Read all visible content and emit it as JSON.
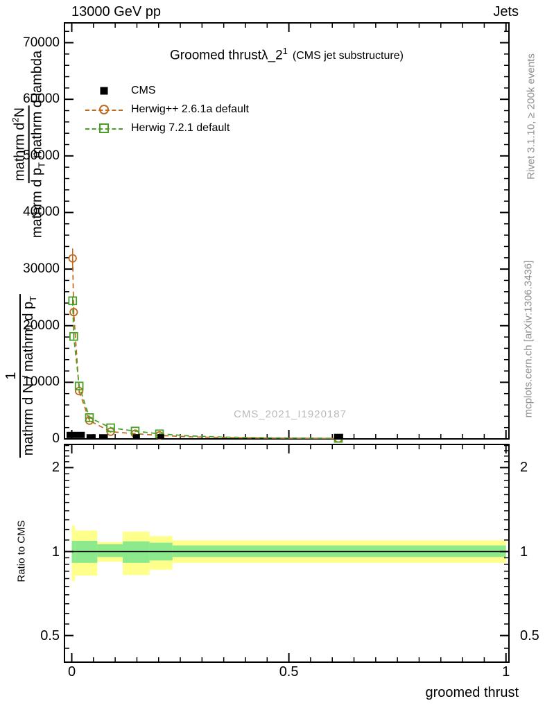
{
  "header": {
    "beam": "13000 GeV pp",
    "analysis_tag": "Jets"
  },
  "title": {
    "main": "Groomed thrust",
    "lambda": "λ_2",
    "sup": "1",
    "paren": "(CMS jet substructure)"
  },
  "legend": {
    "cms_label": "CMS",
    "herwigpp_label": "Herwig++ 2.6.1a default",
    "herwig7_label": "Herwig 7.2.1 default"
  },
  "watermark": "CMS_2021_I1920187",
  "side_notes": {
    "top": "Rivet 3.1.10, ≥ 200k events",
    "bottom": "mcplots.cern.ch [arXiv:1306.3436]"
  },
  "ylabel": {
    "outer_num": "1",
    "outer_den": "mathrm d N / mathrm d p",
    "outer_den_sub": "T",
    "inner_num": "mathrm d",
    "inner_num_sup": "2",
    "inner_num_tail": "N",
    "inner_den": "mathrm d p",
    "inner_den_sub": "T",
    "inner_den_tail": " mathrm d lambda"
  },
  "ratio_label": "Ratio to CMS",
  "xlabel": "groomed thrust",
  "chart_data": {
    "type": "line",
    "title": "Groomed thrust λ_2^1 (CMS jet substructure)",
    "xlabel": "groomed thrust",
    "ylabel": "1/(dN/dp_T) · d²N/(dp_T dλ)",
    "xlim": [
      -0.0168,
      1.0072
    ],
    "ylim": [
      0,
      73500
    ],
    "ratio_ylim": [
      0.4,
      2.43
    ],
    "grid": false,
    "legend_position": "top-left",
    "x_ticks": {
      "major": [
        {
          "v": 0,
          "label": "0"
        },
        {
          "v": 0.5,
          "label": "0.5"
        },
        {
          "v": 1,
          "label": "1"
        }
      ],
      "minor_step": 0.05
    },
    "y_ticks": {
      "major": [
        {
          "v": 0,
          "label": "0"
        },
        {
          "v": 10000,
          "label": "10000"
        },
        {
          "v": 20000,
          "label": "20000"
        },
        {
          "v": 30000,
          "label": "30000"
        },
        {
          "v": 40000,
          "label": "40000"
        },
        {
          "v": 50000,
          "label": "50000"
        },
        {
          "v": 60000,
          "label": "60000"
        },
        {
          "v": 70000,
          "label": "70000"
        }
      ],
      "minor_step": 2000
    },
    "ratio_ticks": {
      "major": [
        {
          "v": 0.5,
          "label": "0.5"
        },
        {
          "v": 1,
          "label": "1"
        },
        {
          "v": 2,
          "label": "2"
        }
      ],
      "minor": [
        0.45,
        0.55,
        0.6,
        0.65,
        0.7,
        0.75,
        0.8,
        0.85,
        0.9,
        0.95,
        1.1,
        1.2,
        1.3,
        1.4,
        1.5,
        1.6,
        1.7,
        1.8,
        1.9,
        2.1,
        2.2,
        2.3,
        2.4
      ]
    },
    "series": [
      {
        "name": "Herwig++ 2.6.1a default",
        "color": "#bf681e",
        "marker": "circle",
        "linestyle": "dashed",
        "points": [
          [
            0.002,
            31900,
            1750,
            1
          ],
          [
            0.0045,
            22400,
            900,
            1
          ],
          [
            0.017,
            8440,
            400,
            1
          ],
          [
            0.0407,
            3230,
            250,
            1
          ],
          [
            0.0895,
            1270,
            160,
            1
          ],
          [
            0.146,
            920,
            130,
            1
          ],
          [
            0.202,
            610,
            110,
            1
          ],
          [
            0.27,
            380,
            0,
            0
          ],
          [
            0.35,
            230,
            0,
            0
          ],
          [
            0.45,
            140,
            0,
            0
          ],
          [
            0.614,
            70,
            100,
            1
          ]
        ]
      },
      {
        "name": "Herwig 7.2.1 default",
        "color": "#46a024",
        "marker": "square",
        "linestyle": "dashed",
        "points": [
          [
            0.002,
            24400,
            800,
            1
          ],
          [
            0.0045,
            18100,
            600,
            1
          ],
          [
            0.017,
            9340,
            420,
            1
          ],
          [
            0.0407,
            3760,
            260,
            1
          ],
          [
            0.0895,
            1960,
            190,
            1
          ],
          [
            0.146,
            1380,
            140,
            1
          ],
          [
            0.202,
            890,
            120,
            1
          ],
          [
            0.27,
            540,
            0,
            0
          ],
          [
            0.35,
            320,
            0,
            0
          ],
          [
            0.45,
            190,
            0,
            0
          ],
          [
            0.614,
            100,
            110,
            1
          ]
        ]
      }
    ],
    "cms_data": {
      "name": "CMS",
      "color": "#000000",
      "marker": "filled-square",
      "segments": [
        {
          "x0": -0.012,
          "x1": 0.03,
          "y": 700,
          "h": 9
        },
        {
          "x0": 0.034,
          "x1": 0.055,
          "y": 400,
          "h": 7
        },
        {
          "x0": 0.063,
          "x1": 0.083,
          "y": 400,
          "h": 7
        },
        {
          "x0": 0.141,
          "x1": 0.157,
          "y": 400,
          "h": 7
        },
        {
          "x0": 0.197,
          "x1": 0.213,
          "y": 400,
          "h": 7
        },
        {
          "x0": 0.604,
          "x1": 0.625,
          "y": 400,
          "h": 8
        }
      ]
    },
    "ratio_bands": [
      {
        "x0": 0.0,
        "x1": 0.0075,
        "yellow": [
          0.783,
          1.238
        ],
        "green": [
          0.911,
          1.093
        ]
      },
      {
        "x0": 0.0075,
        "x1": 0.0588,
        "yellow": [
          0.82,
          1.19
        ],
        "green": [
          0.911,
          1.093
        ]
      },
      {
        "x0": 0.0588,
        "x1": 0.1174,
        "yellow": [
          0.92,
          1.082
        ],
        "green": [
          0.956,
          1.062
        ]
      },
      {
        "x0": 0.1174,
        "x1": 0.179,
        "yellow": [
          0.824,
          1.179
        ],
        "green": [
          0.911,
          1.088
        ]
      },
      {
        "x0": 0.179,
        "x1": 0.232,
        "yellow": [
          0.861,
          1.136
        ],
        "green": [
          0.929,
          1.076
        ]
      },
      {
        "x0": 0.232,
        "x1": 1.0,
        "yellow": [
          0.911,
          1.097
        ],
        "green": [
          0.956,
          1.052
        ]
      }
    ],
    "band_colors": {
      "yellow": "#ffff8c",
      "green": "#8ce98c"
    },
    "ratio_line": 1
  }
}
